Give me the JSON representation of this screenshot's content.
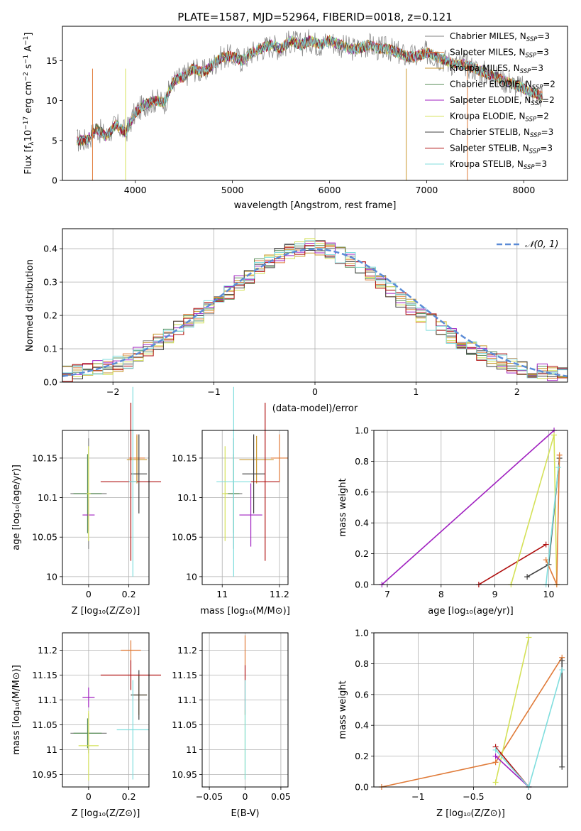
{
  "figure": {
    "title": "PLATE=1587, MJD=52964, FIBERID=0018, z=0.121"
  },
  "palette": {
    "Chabrier MILES": "#808080",
    "Salpeter MILES": "#e07b39",
    "Kroupa MILES": "#c8962c",
    "Chabrier ELODIE": "#5a8f5a",
    "Salpeter ELODIE": "#a020c0",
    "Kroupa ELODIE": "#d4e157",
    "Chabrier STELIB": "#404040",
    "Salpeter STELIB": "#b01010",
    "Kroupa STELIB": "#80dede"
  },
  "chart_data": [
    {
      "id": "spectrum",
      "type": "line",
      "xlabel": "wavelength [Angstrom, rest frame]",
      "ylabel": "Flux [f_λ 10^-17 erg cm^-2 s^-1 A^-1]",
      "xlim": [
        3250,
        8450
      ],
      "ylim": [
        0,
        19.3
      ],
      "xticks": [
        4000,
        5000,
        6000,
        7000,
        8000
      ],
      "yticks": [
        0,
        5,
        10,
        15
      ],
      "grid": false,
      "legend_position": "top-right",
      "x": [
        3400,
        3500,
        3600,
        3700,
        3800,
        3900,
        4000,
        4100,
        4200,
        4300,
        4400,
        4500,
        4600,
        4700,
        4800,
        4900,
        5000,
        5100,
        5200,
        5300,
        5400,
        5500,
        5600,
        5700,
        5800,
        5900,
        6000,
        6100,
        6200,
        6300,
        6400,
        6500,
        6600,
        6700,
        6800,
        6900,
        7000,
        7100,
        7200,
        7300,
        7400,
        7500,
        7600,
        7700,
        7800,
        7900,
        8000,
        8100,
        8200
      ],
      "y": [
        5.0,
        5.0,
        6.5,
        5.5,
        7.0,
        6.0,
        8.5,
        9.5,
        10.0,
        9.8,
        12.5,
        13.0,
        14.0,
        13.5,
        14.5,
        15.5,
        15.5,
        15.0,
        16.0,
        16.5,
        17.0,
        16.5,
        17.5,
        17.0,
        17.5,
        17.0,
        17.5,
        17.0,
        16.5,
        16.5,
        17.0,
        16.5,
        16.5,
        16.0,
        15.5,
        15.5,
        16.0,
        15.5,
        15.0,
        14.5,
        14.5,
        14.0,
        13.5,
        13.0,
        12.5,
        12.0,
        11.5,
        11.0,
        10.5
      ],
      "series": [
        {
          "name": "Chabrier MILES, N_SSP=3"
        },
        {
          "name": "Salpeter MILES, N_SSP=3"
        },
        {
          "name": "Kroupa MILES, N_SSP=3"
        },
        {
          "name": "Chabrier ELODIE, N_SSP=2"
        },
        {
          "name": "Salpeter ELODIE, N_SSP=2"
        },
        {
          "name": "Kroupa ELODIE, N_SSP=2"
        },
        {
          "name": "Chabrier STELIB, N_SSP=3"
        },
        {
          "name": "Salpeter STELIB, N_SSP=3"
        },
        {
          "name": "Kroupa STELIB, N_SSP=3"
        }
      ]
    },
    {
      "id": "residuals",
      "type": "line",
      "xlabel": "(data-model)/error",
      "ylabel": "Normed distribution",
      "xlim": [
        -2.5,
        2.5
      ],
      "ylim": [
        0,
        0.46
      ],
      "xticks": [
        -2,
        -1,
        0,
        1,
        2
      ],
      "yticks": [
        0.0,
        0.1,
        0.2,
        0.3,
        0.4
      ],
      "grid": true,
      "legend": "𝒩(0, 1)",
      "legend_position": "top-right",
      "bins_x": [
        -2.5,
        -2.4,
        -2.3,
        -2.2,
        -2.1,
        -2.0,
        -1.9,
        -1.8,
        -1.7,
        -1.6,
        -1.5,
        -1.4,
        -1.3,
        -1.2,
        -1.1,
        -1.0,
        -0.9,
        -0.8,
        -0.7,
        -0.6,
        -0.5,
        -0.4,
        -0.3,
        -0.2,
        -0.1,
        0.0,
        0.1,
        0.2,
        0.3,
        0.4,
        0.5,
        0.6,
        0.7,
        0.8,
        0.9,
        1.0,
        1.1,
        1.2,
        1.3,
        1.4,
        1.5,
        1.6,
        1.7,
        1.8,
        1.9,
        2.0,
        2.1,
        2.2,
        2.3,
        2.4
      ],
      "histogram": [
        0.025,
        0.03,
        0.035,
        0.04,
        0.045,
        0.055,
        0.065,
        0.08,
        0.1,
        0.12,
        0.14,
        0.16,
        0.18,
        0.2,
        0.225,
        0.25,
        0.27,
        0.295,
        0.32,
        0.345,
        0.365,
        0.38,
        0.395,
        0.4,
        0.41,
        0.405,
        0.395,
        0.38,
        0.365,
        0.345,
        0.325,
        0.3,
        0.275,
        0.25,
        0.225,
        0.2,
        0.18,
        0.16,
        0.14,
        0.12,
        0.1,
        0.085,
        0.07,
        0.06,
        0.05,
        0.04,
        0.035,
        0.03,
        0.027,
        0.025
      ],
      "normal_curve_sigma": 1.0
    },
    {
      "id": "age_vs_Z",
      "type": "scatter",
      "xlabel": "Z [log10(Z/Z⊙)]",
      "ylabel": "age [log10(age/yr)]",
      "xlim": [
        -0.13,
        0.3
      ],
      "ylim": [
        9.99,
        10.185
      ],
      "xticks": [
        0.0,
        0.2
      ],
      "yticks": [
        10.0,
        10.05,
        10.1,
        10.15
      ],
      "grid": true,
      "points": [
        {
          "series": "Chabrier MILES",
          "x": 0.0,
          "y": 10.105,
          "xerr": 0.09,
          "yerr": 0.07
        },
        {
          "series": "Salpeter MILES",
          "x": 0.24,
          "y": 10.15,
          "xerr": 0.04,
          "yerr": 0.03
        },
        {
          "series": "Kroupa MILES",
          "x": 0.24,
          "y": 10.148,
          "xerr": 0.05,
          "yerr": 0.03
        },
        {
          "series": "Chabrier ELODIE",
          "x": -0.005,
          "y": 10.105,
          "xerr": 0.07,
          "yerr": 0.05
        },
        {
          "series": "Salpeter ELODIE",
          "x": 0.0,
          "y": 10.078,
          "xerr": 0.03,
          "yerr": 0.02
        },
        {
          "series": "Kroupa ELODIE",
          "x": 0.0,
          "y": 10.105,
          "xerr": 0.01,
          "yerr": 0.06
        },
        {
          "series": "Chabrier STELIB",
          "x": 0.25,
          "y": 10.13,
          "xerr": 0.04,
          "yerr": 0.05
        },
        {
          "series": "Salpeter STELIB",
          "x": 0.21,
          "y": 10.12,
          "xerr": 0.15,
          "yerr": 0.1
        },
        {
          "series": "Kroupa STELIB",
          "x": 0.22,
          "y": 10.12,
          "xerr": 0.02,
          "yerr": 0.12
        }
      ]
    },
    {
      "id": "age_vs_mass",
      "type": "scatter",
      "xlabel": "mass [log10(M/M⊙)]",
      "ylabel": "",
      "xlim": [
        10.93,
        11.23
      ],
      "ylim": [
        9.99,
        10.185
      ],
      "xticks": [
        11.0,
        11.2
      ],
      "yticks": [
        10.0,
        10.05,
        10.1,
        10.15
      ],
      "grid": true,
      "points": [
        {
          "series": "Chabrier MILES",
          "x": 11.04,
          "y": 10.105,
          "xerr": 0.03,
          "yerr": 0.07
        },
        {
          "series": "Salpeter MILES",
          "x": 11.2,
          "y": 10.15,
          "xerr": 0.03,
          "yerr": 0.03
        },
        {
          "series": "Kroupa MILES",
          "x": 11.12,
          "y": 10.148,
          "xerr": 0.06,
          "yerr": 0.03
        },
        {
          "series": "Chabrier ELODIE",
          "x": 11.04,
          "y": 10.105,
          "xerr": 0.02,
          "yerr": 0.05
        },
        {
          "series": "Salpeter ELODIE",
          "x": 11.1,
          "y": 10.078,
          "xerr": 0.04,
          "yerr": 0.04
        },
        {
          "series": "Kroupa ELODIE",
          "x": 11.01,
          "y": 10.105,
          "xerr": 0.01,
          "yerr": 0.06
        },
        {
          "series": "Chabrier STELIB",
          "x": 11.11,
          "y": 10.13,
          "xerr": 0.04,
          "yerr": 0.05
        },
        {
          "series": "Salpeter STELIB",
          "x": 11.15,
          "y": 10.12,
          "xerr": 0.05,
          "yerr": 0.1
        },
        {
          "series": "Kroupa STELIB",
          "x": 11.04,
          "y": 10.12,
          "xerr": 0.06,
          "yerr": 0.12
        }
      ]
    },
    {
      "id": "weight_vs_age",
      "type": "line",
      "xlabel": "age [log10(age/yr)]",
      "ylabel": "mass weight",
      "xlim": [
        6.75,
        10.35
      ],
      "ylim": [
        0,
        1.0
      ],
      "xticks": [
        7,
        8,
        9,
        10
      ],
      "yticks": [
        0.0,
        0.2,
        0.4,
        0.6,
        0.8,
        1.0
      ],
      "grid": true,
      "series": [
        {
          "name": "Salpeter ELODIE",
          "x": [
            6.9,
            10.1
          ],
          "y": [
            0.0,
            1.0
          ]
        },
        {
          "name": "Salpeter STELIB",
          "x": [
            8.7,
            9.95
          ],
          "y": [
            0.0,
            0.26
          ]
        },
        {
          "name": "Kroupa ELODIE",
          "x": [
            9.3,
            10.1,
            10.15
          ],
          "y": [
            0.0,
            0.97,
            0.0
          ]
        },
        {
          "name": "Chabrier STELIB",
          "x": [
            9.6,
            10.0,
            10.2
          ],
          "y": [
            0.05,
            0.13,
            0.82
          ]
        },
        {
          "name": "Salpeter MILES",
          "x": [
            9.95,
            10.15,
            10.2
          ],
          "y": [
            0.16,
            0.0,
            0.84
          ]
        },
        {
          "name": "Kroupa STELIB",
          "x": [
            9.95,
            10.18
          ],
          "y": [
            0.0,
            0.76
          ]
        }
      ]
    },
    {
      "id": "mass_vs_Z",
      "type": "scatter",
      "xlabel": "Z [log10(Z/Z⊙)]",
      "ylabel": "mass [log10(M/M⊙)]",
      "xlim": [
        -0.13,
        0.3
      ],
      "ylim": [
        10.925,
        11.235
      ],
      "xticks": [
        0.0,
        0.2
      ],
      "yticks": [
        10.95,
        11.0,
        11.05,
        11.1,
        11.15,
        11.2
      ],
      "grid": true,
      "points": [
        {
          "series": "Chabrier MILES",
          "x": 0.0,
          "y": 11.033,
          "xerr": 0.09,
          "yerr": 0.04
        },
        {
          "series": "Salpeter MILES",
          "x": 0.21,
          "y": 11.2,
          "xerr": 0.05,
          "yerr": 0.02
        },
        {
          "series": "Kroupa MILES",
          "x": 0.25,
          "y": 11.11,
          "xerr": 0.04,
          "yerr": 0.04
        },
        {
          "series": "Chabrier ELODIE",
          "x": -0.005,
          "y": 11.033,
          "xerr": 0.07,
          "yerr": 0.03
        },
        {
          "series": "Salpeter ELODIE",
          "x": 0.0,
          "y": 11.105,
          "xerr": 0.03,
          "yerr": 0.02
        },
        {
          "series": "Kroupa ELODIE",
          "x": 0.0,
          "y": 11.008,
          "xerr": 0.05,
          "yerr": 0.07
        },
        {
          "series": "Chabrier STELIB",
          "x": 0.25,
          "y": 11.11,
          "xerr": 0.04,
          "yerr": 0.05
        },
        {
          "series": "Salpeter STELIB",
          "x": 0.21,
          "y": 11.15,
          "xerr": 0.15,
          "yerr": 0.03
        },
        {
          "series": "Kroupa STELIB",
          "x": 0.22,
          "y": 11.04,
          "xerr": 0.08,
          "yerr": 0.1
        }
      ]
    },
    {
      "id": "mass_vs_EBV",
      "type": "scatter",
      "xlabel": "E(B-V)",
      "ylabel": "",
      "xlim": [
        -0.06,
        0.06
      ],
      "ylim": [
        10.925,
        11.235
      ],
      "xticks": [
        -0.05,
        0.0,
        0.05
      ],
      "yticks": [
        10.95,
        11.0,
        11.05,
        11.1,
        11.15,
        11.2
      ],
      "grid": true,
      "points": [
        {
          "series": "Salpeter MILES",
          "x": 0.0,
          "y": 11.2,
          "xerr": 0.0,
          "yerr": 0.03
        },
        {
          "series": "Salpeter STELIB",
          "x": 0.0,
          "y": 11.12,
          "xerr": 0.0,
          "yerr": 0.05
        },
        {
          "series": "Kroupa ELODIE",
          "x": 0.0,
          "y": 11.01,
          "xerr": 0.0,
          "yerr": 0.07
        },
        {
          "series": "Kroupa STELIB",
          "x": 0.0,
          "y": 11.04,
          "xerr": 0.0,
          "yerr": 0.1
        }
      ]
    },
    {
      "id": "weight_vs_Z",
      "type": "line",
      "xlabel": "Z [log10(Z/Z⊙)]",
      "ylabel": "mass weight",
      "xlim": [
        -1.4,
        0.35
      ],
      "ylim": [
        0,
        1.0
      ],
      "xticks": [
        -1.0,
        -0.5,
        0.0
      ],
      "yticks": [
        0.0,
        0.2,
        0.4,
        0.6,
        0.8,
        1.0
      ],
      "grid": true,
      "series": [
        {
          "name": "Salpeter MILES",
          "x": [
            -1.33,
            -0.3,
            0.3
          ],
          "y": [
            0.0,
            0.16,
            0.84
          ]
        },
        {
          "name": "Kroupa ELODIE",
          "x": [
            -0.3,
            0.0
          ],
          "y": [
            0.03,
            0.97
          ]
        },
        {
          "name": "Salpeter ELODIE",
          "x": [
            -0.3,
            0.0
          ],
          "y": [
            0.2,
            0.0
          ]
        },
        {
          "name": "Salpeter STELIB",
          "x": [
            -0.3,
            0.0
          ],
          "y": [
            0.26,
            0.0
          ]
        },
        {
          "name": "Chabrier STELIB",
          "x": [
            0.3,
            0.3
          ],
          "y": [
            0.13,
            0.82
          ]
        },
        {
          "name": "Kroupa STELIB",
          "x": [
            -0.3,
            0.0,
            0.3
          ],
          "y": [
            0.24,
            0.0,
            0.76
          ]
        }
      ]
    }
  ]
}
